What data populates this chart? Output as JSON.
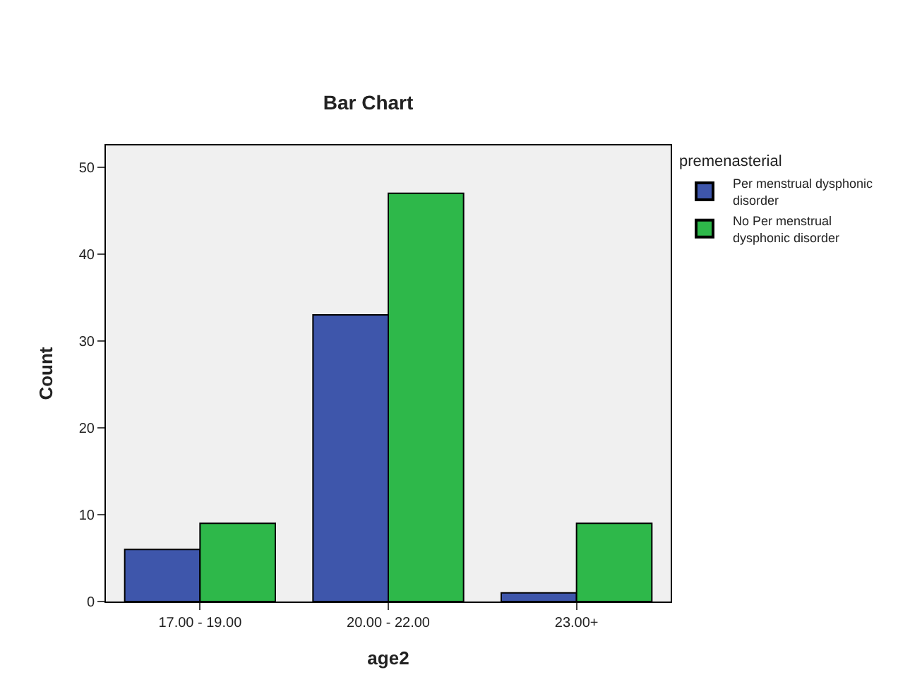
{
  "chart_data": {
    "type": "bar",
    "title": "Bar Chart",
    "xlabel": "age2",
    "ylabel": "Count",
    "legend_title": "premenasterial",
    "categories": [
      "17.00 - 19.00",
      "20.00 - 22.00",
      "23.00+"
    ],
    "series": [
      {
        "name": "Per menstrual dysphonic disorder",
        "color": "#3e56ab",
        "values": [
          6,
          33,
          1
        ]
      },
      {
        "name": "No Per menstrual dysphonic disorder",
        "color": "#2eb84a",
        "values": [
          9,
          47,
          9
        ]
      }
    ],
    "ylim": [
      0,
      52.5
    ],
    "yticks": [
      0,
      10,
      20,
      30,
      40,
      50
    ],
    "grid": false,
    "legend": "top right"
  }
}
